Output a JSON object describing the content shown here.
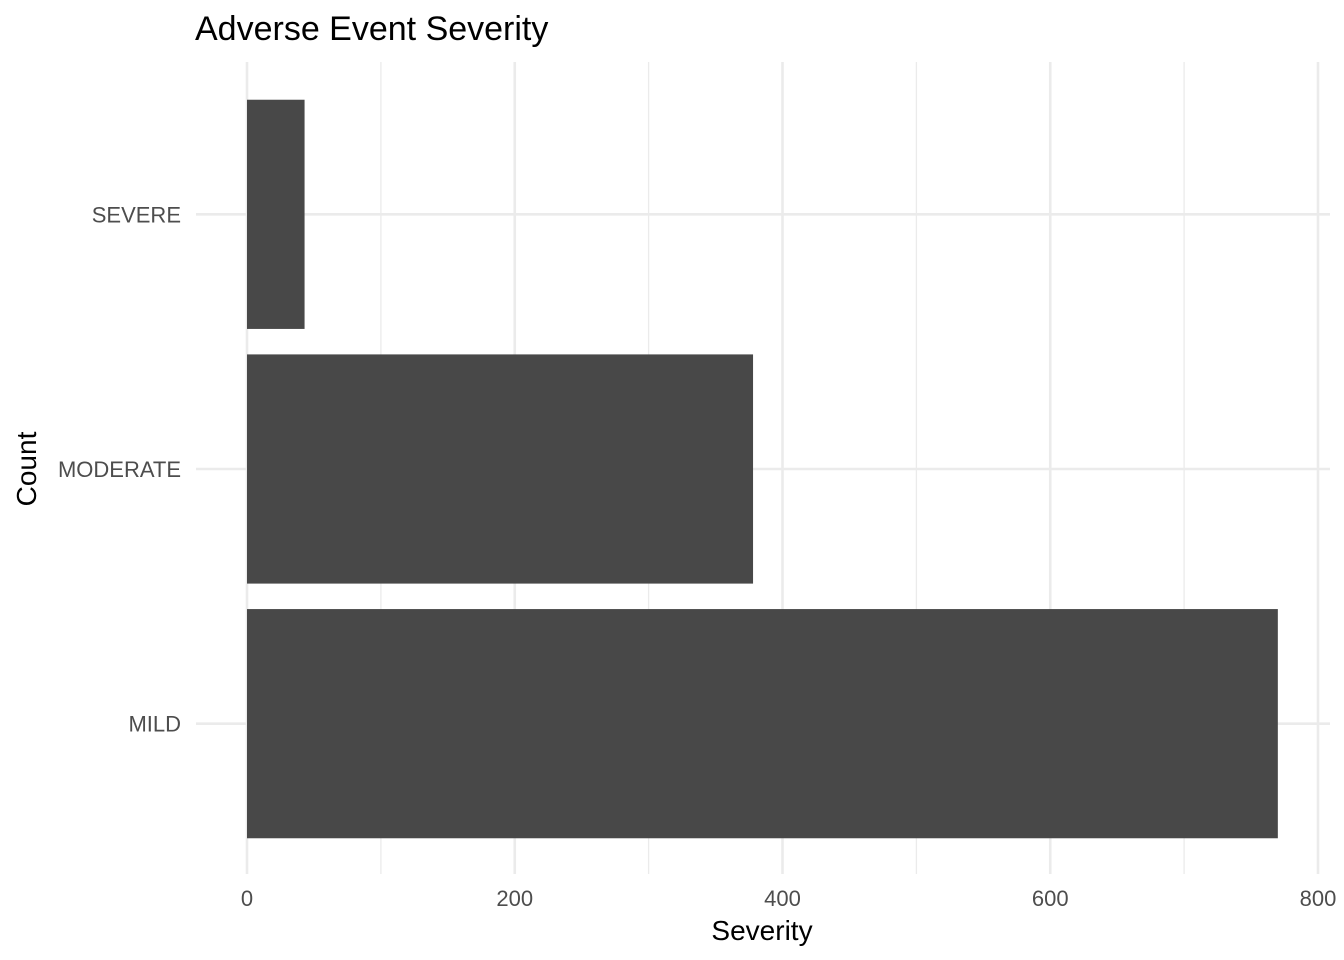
{
  "chart_data": {
    "type": "bar",
    "orientation": "horizontal",
    "title": "Adverse Event Severity",
    "xlabel": "Severity",
    "ylabel": "Count",
    "categories": [
      "MILD",
      "MODERATE",
      "SEVERE"
    ],
    "values": [
      770,
      378,
      43
    ],
    "xlim": [
      0,
      800
    ],
    "x_ticks": [
      0,
      200,
      400,
      600,
      800
    ],
    "x_minor_ticks": [
      100,
      300,
      500,
      700
    ],
    "grid": true,
    "bar_color": "#484848",
    "grid_color": "#ebebeb",
    "legend": "none"
  }
}
